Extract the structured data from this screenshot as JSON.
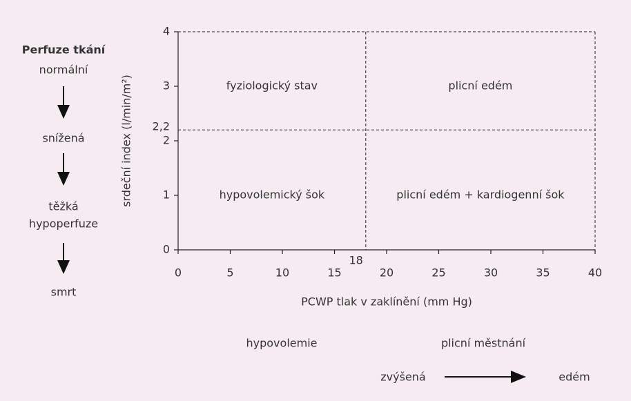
{
  "chart_data": {
    "type": "quadrant",
    "xlabel": "PCWP tlak v zaklínění (mm Hg)",
    "ylabel": "srdeční index (l/min/m²)",
    "xlim": [
      0,
      40
    ],
    "xticks": [
      0,
      5,
      10,
      15,
      20,
      25,
      30,
      35,
      40
    ],
    "ylim": [
      0,
      4
    ],
    "yticks": [
      0,
      1,
      2,
      3,
      4
    ],
    "x_threshold": 18,
    "y_threshold": {
      "value": 2.2,
      "label": "2,2"
    },
    "quadrants": [
      "fyziologický  stav",
      "plicní edém",
      "hypovolemický šok",
      "plicní edém + kardiogenní šok"
    ]
  },
  "perfusion": {
    "title": "Perfuze tkání",
    "stages": [
      "normální",
      "snížená",
      "těžká",
      "hypoperfuze",
      "smrt"
    ]
  },
  "bottom": {
    "left": "hypovolemie",
    "right": "plicní městnání",
    "from": "zvýšená",
    "to": "edém"
  }
}
